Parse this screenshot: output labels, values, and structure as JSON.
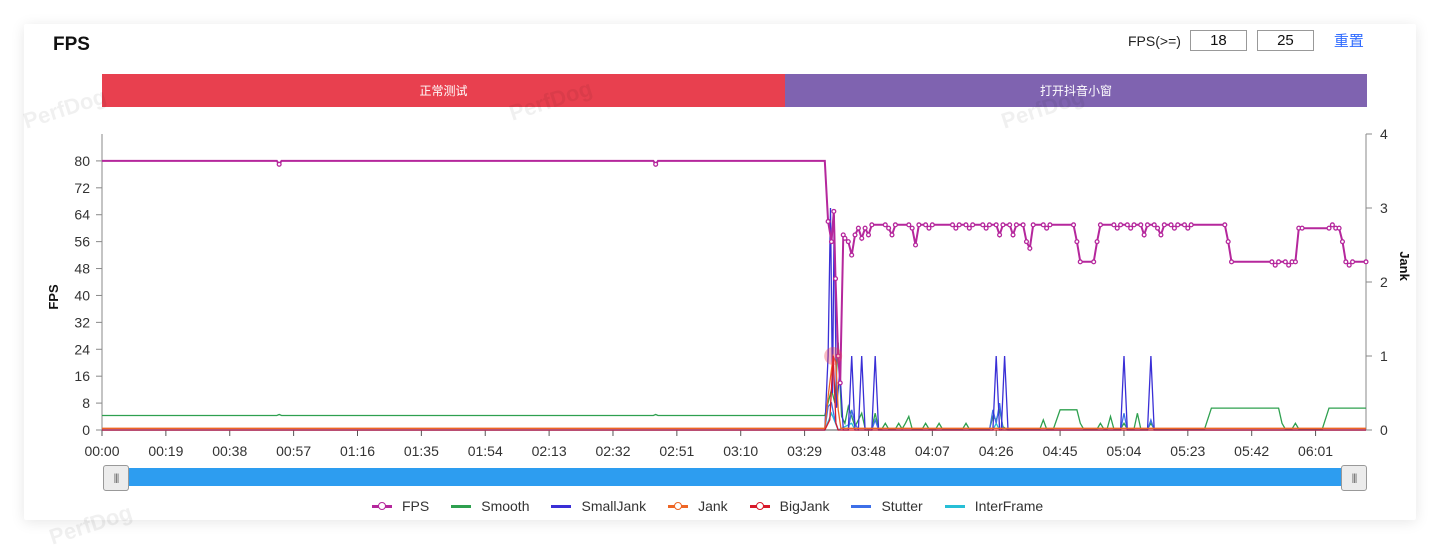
{
  "title": "FPS",
  "controls": {
    "label": "FPS(>=)",
    "low": "18",
    "high": "25",
    "reset": "重置"
  },
  "phases": [
    {
      "label": "正常测试",
      "color": "#e8404f"
    },
    {
      "label": "打开抖音小窗",
      "color": "#7f63b0"
    }
  ],
  "watermark": "PerfDog",
  "chart_data": {
    "type": "line",
    "y_left": {
      "label": "FPS",
      "ticks": [
        0,
        8,
        16,
        24,
        32,
        40,
        48,
        56,
        64,
        72,
        80
      ],
      "range": [
        0,
        88
      ]
    },
    "y_right": {
      "label": "Jank",
      "ticks": [
        0,
        1,
        2,
        3,
        4
      ],
      "range": [
        0,
        4
      ]
    },
    "x_ticks": [
      "00:00",
      "00:19",
      "00:38",
      "00:57",
      "01:16",
      "01:35",
      "01:54",
      "02:13",
      "02:32",
      "02:51",
      "03:10",
      "03:29",
      "03:48",
      "04:07",
      "04:26",
      "04:45",
      "05:04",
      "05:23",
      "05:42",
      "06:01"
    ],
    "x_range_seconds": [
      0,
      376
    ],
    "series": [
      {
        "name": "FPS",
        "color": "#b5279c",
        "axis": "left",
        "marker": true,
        "points": [
          [
            0,
            80
          ],
          [
            52,
            80
          ],
          [
            52.7,
            79
          ],
          [
            53.4,
            80
          ],
          [
            164,
            80
          ],
          [
            164.7,
            79
          ],
          [
            165.4,
            80
          ],
          [
            215,
            80
          ],
          [
            216,
            62
          ],
          [
            217,
            56
          ],
          [
            217.7,
            65
          ],
          [
            218.2,
            45
          ],
          [
            219,
            22
          ],
          [
            219.6,
            14
          ],
          [
            220.5,
            58
          ],
          [
            221,
            57
          ],
          [
            222,
            56
          ],
          [
            223,
            52
          ],
          [
            224,
            58
          ],
          [
            225,
            60
          ],
          [
            226,
            57
          ],
          [
            227,
            60
          ],
          [
            228,
            58
          ],
          [
            229,
            61
          ],
          [
            233,
            61
          ],
          [
            234,
            60
          ],
          [
            235,
            58
          ],
          [
            236,
            61
          ],
          [
            240,
            61
          ],
          [
            241,
            60
          ],
          [
            242,
            55
          ],
          [
            243,
            61
          ],
          [
            245,
            61
          ],
          [
            246,
            60
          ],
          [
            247,
            61
          ],
          [
            253,
            61
          ],
          [
            254,
            60
          ],
          [
            255,
            61
          ],
          [
            257,
            61
          ],
          [
            258,
            60
          ],
          [
            259,
            61
          ],
          [
            262,
            61
          ],
          [
            263,
            60
          ],
          [
            264,
            61
          ],
          [
            266,
            61
          ],
          [
            267,
            58
          ],
          [
            268,
            61
          ],
          [
            270,
            61
          ],
          [
            271,
            58
          ],
          [
            272,
            61
          ],
          [
            274,
            61
          ],
          [
            275,
            56
          ],
          [
            276,
            54
          ],
          [
            277,
            61
          ],
          [
            280,
            61
          ],
          [
            281,
            60
          ],
          [
            282,
            61
          ],
          [
            289,
            61
          ],
          [
            290,
            56
          ],
          [
            291,
            50
          ],
          [
            295,
            50
          ],
          [
            296,
            56
          ],
          [
            297,
            61
          ],
          [
            301,
            61
          ],
          [
            302,
            60
          ],
          [
            303,
            61
          ],
          [
            305,
            61
          ],
          [
            306,
            60
          ],
          [
            307,
            61
          ],
          [
            309,
            61
          ],
          [
            310,
            58
          ],
          [
            311,
            61
          ],
          [
            313,
            61
          ],
          [
            314,
            60
          ],
          [
            315,
            58
          ],
          [
            316,
            61
          ],
          [
            318,
            61
          ],
          [
            319,
            60
          ],
          [
            320,
            61
          ],
          [
            322,
            61
          ],
          [
            323,
            60
          ],
          [
            324,
            61
          ],
          [
            334,
            61
          ],
          [
            335,
            56
          ],
          [
            336,
            50
          ],
          [
            348,
            50
          ],
          [
            349,
            49
          ],
          [
            350,
            50
          ],
          [
            352,
            50
          ],
          [
            353,
            49
          ],
          [
            354,
            50
          ],
          [
            355,
            50
          ],
          [
            356,
            60
          ],
          [
            357,
            60
          ],
          [
            365,
            60
          ],
          [
            366,
            61
          ],
          [
            367,
            60
          ],
          [
            368,
            60
          ],
          [
            369,
            56
          ],
          [
            370,
            50
          ],
          [
            371,
            49
          ],
          [
            372,
            50
          ],
          [
            376,
            50
          ]
        ]
      },
      {
        "name": "Smooth",
        "color": "#2ea04f",
        "axis": "left",
        "marker": false,
        "points": [
          [
            0,
            4.3
          ],
          [
            52,
            4.3
          ],
          [
            52.7,
            4.6
          ],
          [
            53.4,
            4.3
          ],
          [
            164,
            4.3
          ],
          [
            164.7,
            4.6
          ],
          [
            165.4,
            4.3
          ],
          [
            215,
            4.3
          ],
          [
            217,
            12
          ],
          [
            218,
            8
          ],
          [
            219,
            26
          ],
          [
            220,
            4
          ],
          [
            221,
            2
          ],
          [
            222,
            7
          ],
          [
            223,
            4
          ],
          [
            224,
            1
          ],
          [
            225,
            3
          ],
          [
            226,
            5
          ],
          [
            227,
            0.5
          ],
          [
            228,
            0.3
          ],
          [
            229,
            0.5
          ],
          [
            230,
            5
          ],
          [
            231,
            0.3
          ],
          [
            232,
            0.3
          ],
          [
            233,
            2
          ],
          [
            234,
            0.3
          ],
          [
            236,
            0.3
          ],
          [
            237,
            2
          ],
          [
            238,
            0.3
          ],
          [
            239,
            2
          ],
          [
            240,
            4
          ],
          [
            241,
            0.3
          ],
          [
            244,
            0.3
          ],
          [
            245,
            2
          ],
          [
            246,
            0.3
          ],
          [
            248,
            0.3
          ],
          [
            249,
            2
          ],
          [
            250,
            0.3
          ],
          [
            256,
            0.3
          ],
          [
            257,
            2
          ],
          [
            258,
            0.3
          ],
          [
            264,
            0.3
          ],
          [
            265,
            4
          ],
          [
            266,
            3
          ],
          [
            267,
            6
          ],
          [
            268,
            1
          ],
          [
            269,
            0.3
          ],
          [
            279,
            0.3
          ],
          [
            280,
            3
          ],
          [
            281,
            0.3
          ],
          [
            283,
            0.3
          ],
          [
            285,
            6
          ],
          [
            290,
            6
          ],
          [
            291,
            2
          ],
          [
            292,
            0.3
          ],
          [
            296,
            0.3
          ],
          [
            297,
            2
          ],
          [
            298,
            0.3
          ],
          [
            299,
            0.3
          ],
          [
            300,
            4
          ],
          [
            301,
            0.3
          ],
          [
            303,
            0.3
          ],
          [
            304,
            2
          ],
          [
            305,
            0.3
          ],
          [
            307,
            0.3
          ],
          [
            308,
            5
          ],
          [
            309,
            0.3
          ],
          [
            311,
            0.3
          ],
          [
            312,
            2
          ],
          [
            313,
            0.3
          ],
          [
            328,
            0.3
          ],
          [
            330,
            6.5
          ],
          [
            350,
            6.5
          ],
          [
            351,
            2
          ],
          [
            352,
            0.3
          ],
          [
            354,
            0.3
          ],
          [
            355,
            2
          ],
          [
            356,
            0.3
          ],
          [
            363,
            0.3
          ],
          [
            365,
            6.5
          ],
          [
            376,
            6.5
          ]
        ]
      },
      {
        "name": "SmallJank",
        "color": "#3a2fd6",
        "axis": "right",
        "marker": false,
        "points": [
          [
            0,
            0
          ],
          [
            215,
            0
          ],
          [
            216,
            1
          ],
          [
            216.7,
            3
          ],
          [
            217.3,
            0.5
          ],
          [
            217.8,
            2.9
          ],
          [
            218.5,
            0.3
          ],
          [
            219.5,
            0.8
          ],
          [
            220.5,
            0
          ],
          [
            222,
            0
          ],
          [
            223,
            1
          ],
          [
            224,
            0
          ],
          [
            225,
            0
          ],
          [
            226,
            1
          ],
          [
            227,
            0
          ],
          [
            229,
            0
          ],
          [
            230,
            1
          ],
          [
            231,
            0
          ],
          [
            265,
            0
          ],
          [
            266,
            1
          ],
          [
            267,
            0
          ],
          [
            267.5,
            0
          ],
          [
            268.5,
            1
          ],
          [
            269.5,
            0
          ],
          [
            303,
            0
          ],
          [
            304,
            1
          ],
          [
            305,
            0
          ],
          [
            311,
            0
          ],
          [
            312,
            1
          ],
          [
            313,
            0
          ],
          [
            376,
            0
          ]
        ]
      },
      {
        "name": "Jank",
        "color": "#ee6625",
        "axis": "left",
        "marker": true,
        "points": [
          [
            0,
            0.5
          ],
          [
            215,
            0.5
          ],
          [
            216,
            10
          ],
          [
            217.5,
            22
          ],
          [
            218.3,
            20
          ],
          [
            219,
            6
          ],
          [
            219.8,
            0.5
          ],
          [
            376,
            0.5
          ]
        ]
      },
      {
        "name": "BigJank",
        "color": "#d8192a",
        "axis": "left",
        "marker": true,
        "points": [
          [
            0,
            0
          ],
          [
            215,
            0
          ],
          [
            216.5,
            3
          ],
          [
            217.5,
            22
          ],
          [
            218.3,
            2
          ],
          [
            219,
            0
          ],
          [
            376,
            0
          ]
        ]
      },
      {
        "name": "Stutter",
        "color": "#3d6fe8",
        "axis": "left",
        "marker": false,
        "points": [
          [
            0,
            0
          ],
          [
            215,
            0
          ],
          [
            216,
            7
          ],
          [
            217,
            8
          ],
          [
            218,
            3
          ],
          [
            219,
            0
          ],
          [
            222,
            0
          ],
          [
            223,
            6
          ],
          [
            224,
            2
          ],
          [
            225,
            0
          ],
          [
            229,
            0
          ],
          [
            230,
            3
          ],
          [
            231,
            0
          ],
          [
            264,
            0
          ],
          [
            265,
            6
          ],
          [
            266,
            2
          ],
          [
            267,
            8
          ],
          [
            268,
            0
          ],
          [
            303,
            0
          ],
          [
            304,
            5
          ],
          [
            305,
            0
          ],
          [
            311,
            0
          ],
          [
            312,
            3
          ],
          [
            313,
            0
          ],
          [
            376,
            0
          ]
        ]
      },
      {
        "name": "InterFrame",
        "color": "#27bfd6",
        "axis": "left",
        "marker": false,
        "points": [
          [
            0,
            0
          ],
          [
            215,
            0
          ],
          [
            217,
            5
          ],
          [
            219,
            0
          ],
          [
            223,
            2
          ],
          [
            224,
            0
          ],
          [
            265,
            0
          ],
          [
            266,
            2
          ],
          [
            267,
            0
          ],
          [
            376,
            0
          ]
        ]
      }
    ]
  }
}
